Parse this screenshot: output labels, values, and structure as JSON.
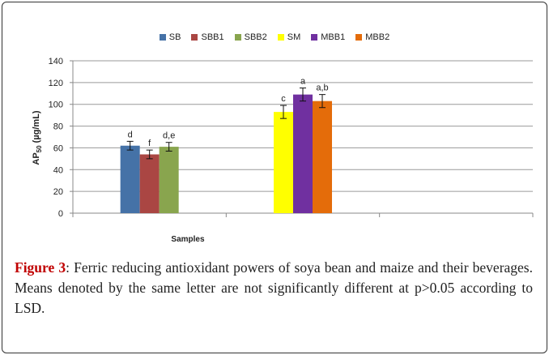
{
  "chart_data": {
    "type": "bar",
    "categories": [
      "SB",
      "SBB1",
      "SBB2",
      "SM",
      "MBB1",
      "MBB2"
    ],
    "values": [
      62,
      54,
      61,
      93,
      109,
      103
    ],
    "errors": [
      4,
      4,
      4,
      6,
      6,
      6
    ],
    "significance_letters": [
      "d",
      "f",
      "d,e",
      "c",
      "a",
      "a,b"
    ],
    "colors": [
      "#4572A7",
      "#AA4643",
      "#89A54E",
      "#FFFF00",
      "#7030A0",
      "#E46C0A"
    ],
    "title": "",
    "xlabel": "Samples",
    "ylabel_main": "AP",
    "ylabel_sub": "50",
    "ylabel_unit": " (µg/mL)",
    "ylim": [
      0,
      140
    ],
    "yticks": [
      "0",
      "20",
      "40",
      "60",
      "80",
      "100",
      "120",
      "140"
    ],
    "grid": true,
    "legend_position": "top"
  },
  "caption": {
    "label": "Figure 3",
    "text": ": Ferric reducing antioxidant powers of soya bean and maize and their beverages. Means denoted by the same letter are not significantly different at p>0.05 according to LSD."
  }
}
